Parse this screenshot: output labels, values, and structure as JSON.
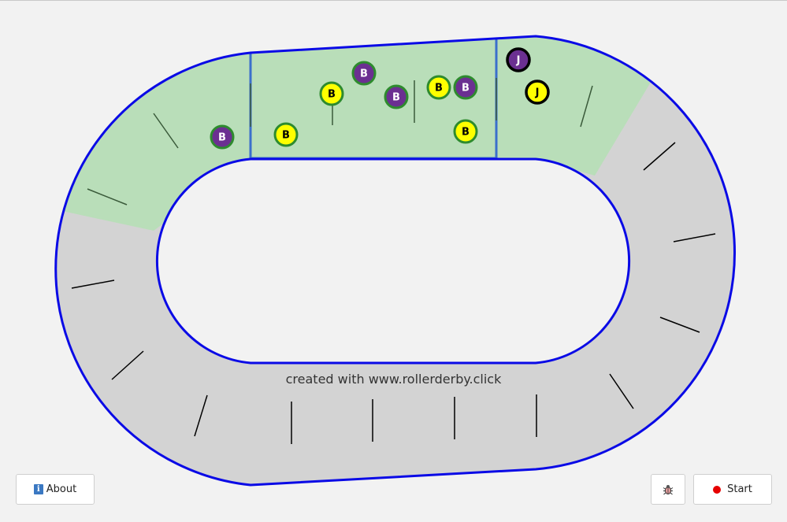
{
  "watermark": "created with www.rollerderby.click",
  "buttons": {
    "about_label": "About",
    "about_icon": "info-icon",
    "bug_icon": "bug-icon",
    "start_label": "Start",
    "start_icon": "record-dot-icon"
  },
  "colors": {
    "track_border": "#0a0ae6",
    "track_surface": "#d3d3d3",
    "engagement_zone": "#b9deb9",
    "pack_lines": "#3a6fcc",
    "team_purple": "#6b2f91",
    "team_yellow": "#ffff00",
    "blocker_ring": "#2e8b2e",
    "jammer_ring": "#000000",
    "record": "#e60000"
  },
  "skaters": [
    {
      "team": "purple",
      "role": "blocker",
      "label": "B"
    },
    {
      "team": "yellow",
      "role": "blocker",
      "label": "B"
    },
    {
      "team": "yellow",
      "role": "blocker",
      "label": "B"
    },
    {
      "team": "purple",
      "role": "blocker",
      "label": "B"
    },
    {
      "team": "purple",
      "role": "blocker",
      "label": "B"
    },
    {
      "team": "yellow",
      "role": "blocker",
      "label": "B"
    },
    {
      "team": "purple",
      "role": "blocker",
      "label": "B"
    },
    {
      "team": "yellow",
      "role": "blocker",
      "label": "B"
    },
    {
      "team": "purple",
      "role": "jammer",
      "label": "J"
    },
    {
      "team": "yellow",
      "role": "jammer",
      "label": "J"
    }
  ]
}
